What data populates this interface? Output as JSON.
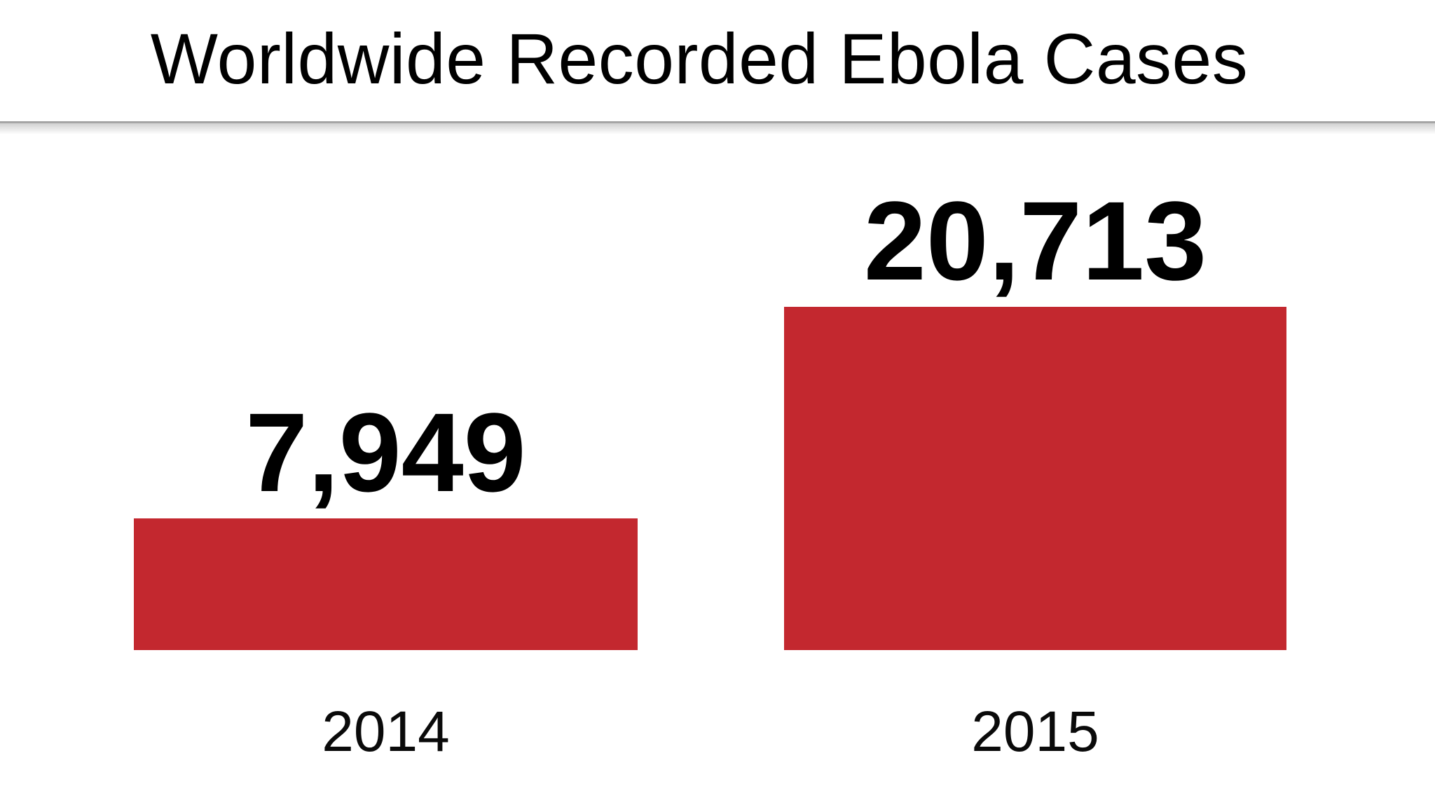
{
  "title": "Worldwide Recorded Ebola Cases",
  "colors": {
    "bar": "#c3282f",
    "text": "#000000",
    "divider": "#a5a5a5",
    "background": "#ffffff"
  },
  "chart_data": {
    "type": "bar",
    "title": "Worldwide Recorded Ebola Cases",
    "categories": [
      "2014",
      "2015"
    ],
    "values": [
      7949,
      20713
    ],
    "value_labels": [
      "7,949",
      "20,713"
    ],
    "series_name": "Recorded Ebola cases",
    "xlabel": "",
    "ylabel": "",
    "ylim": [
      0,
      20713
    ],
    "bar_color": "#c3282f",
    "grid": false,
    "legend": false,
    "orientation": "vertical",
    "data_labels_position": "above-bars",
    "axis_labels_position": "below-bars"
  }
}
